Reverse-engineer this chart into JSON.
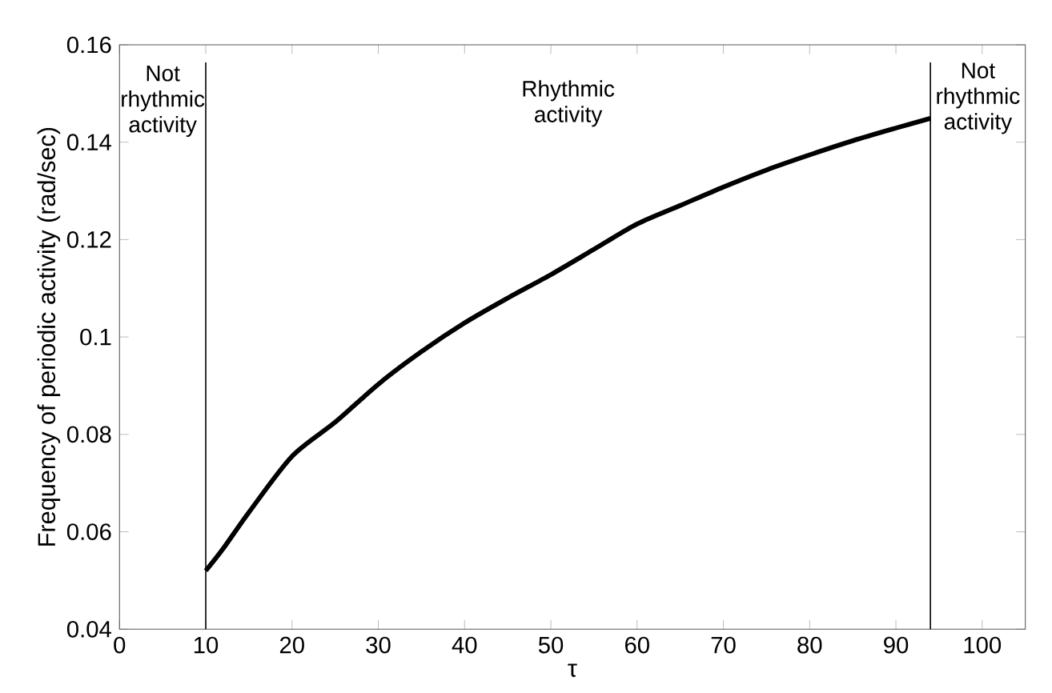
{
  "chart_data": {
    "type": "line",
    "xlabel": "τ",
    "ylabel": "Frequency of periodic activity (rad/sec)",
    "x": [
      10,
      12,
      15,
      20,
      25,
      30,
      35,
      40,
      45,
      50,
      55,
      60,
      65,
      70,
      75,
      80,
      85,
      90,
      94
    ],
    "series": [
      {
        "color": "#000000",
        "values": [
          0.052,
          0.0565,
          0.064,
          0.0755,
          0.0825,
          0.0903,
          0.097,
          0.1029,
          0.108,
          0.1128,
          0.118,
          0.1232,
          0.127,
          0.1308,
          0.1343,
          0.1374,
          0.1403,
          0.1429,
          0.1449
        ]
      }
    ],
    "xlim": [
      0,
      105
    ],
    "ylim": [
      0.04,
      0.16
    ],
    "xticks": [
      0,
      10,
      20,
      30,
      40,
      50,
      60,
      70,
      80,
      90,
      100
    ],
    "yticks": [
      0.04,
      0.06,
      0.08,
      0.1,
      0.12,
      0.14,
      0.16
    ],
    "grid": false,
    "marker": "none",
    "line_style": "solid",
    "ref_lines": [
      {
        "axis": "x",
        "value": 10,
        "color": "#000000"
      },
      {
        "axis": "x",
        "value": 94,
        "color": "#000000"
      }
    ],
    "annotations": [
      "Not rhythmic activity",
      "Rhythmic activity",
      "Not rhythmic activity"
    ]
  }
}
